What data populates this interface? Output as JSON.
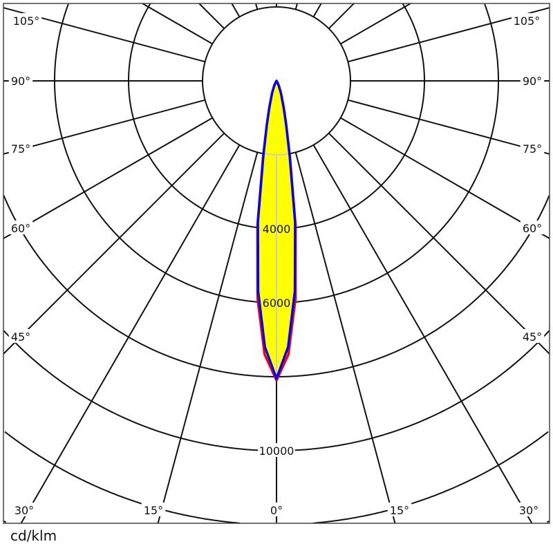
{
  "chart_data": {
    "type": "polar",
    "unit_label": "cd/klm",
    "radial_ticks": [
      2000,
      4000,
      6000,
      8000,
      10000,
      12000,
      14000,
      16000
    ],
    "radial_tick_labels": [
      "4000",
      "6000",
      "10000"
    ],
    "radial_tick_label_values": [
      4000,
      6000,
      10000
    ],
    "angle_ticks": [
      0,
      15,
      30,
      45,
      60,
      75,
      90,
      105,
      120,
      135,
      150,
      165,
      180
    ],
    "angle_labels_left": [
      "105°",
      "90°",
      "75°",
      "60°",
      "45°",
      "30°",
      "15°"
    ],
    "angle_label_center": "0°",
    "angle_labels_right": [
      "105°",
      "90°",
      "75°",
      "60°",
      "45°",
      "30°",
      "15°"
    ],
    "angles": [
      0,
      2.5,
      5,
      7.5,
      10,
      12.5,
      15,
      20,
      25,
      30,
      90
    ],
    "series": [
      {
        "color": "#ff0000",
        "values": [
          8100,
          7400,
          5900,
          3950,
          2100,
          1200,
          750,
          350,
          150,
          60,
          0
        ]
      },
      {
        "color": "#0000ff",
        "values": [
          8050,
          7200,
          5700,
          3850,
          2050,
          1200,
          750,
          350,
          150,
          60,
          0
        ]
      }
    ],
    "fill_color": "#ffff00",
    "grid": true
  }
}
